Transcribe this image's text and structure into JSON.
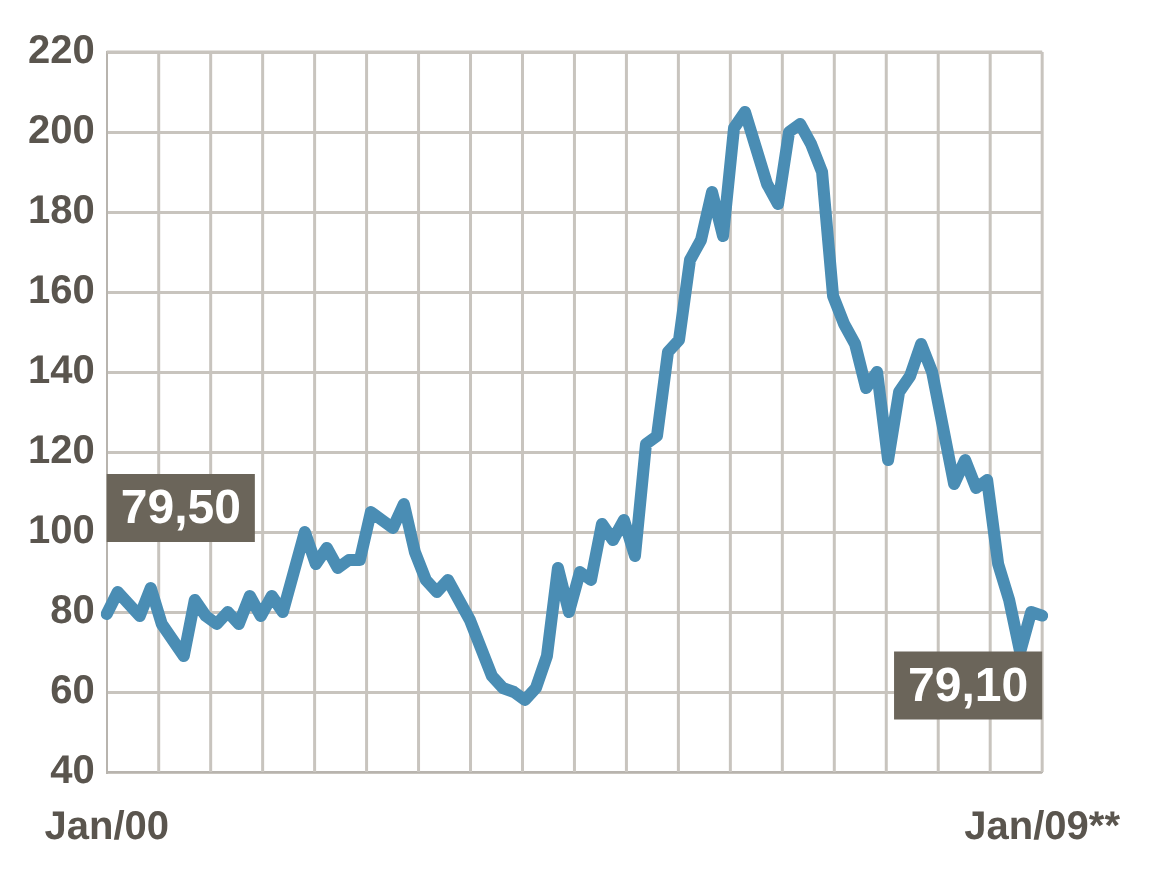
{
  "chart_data": {
    "type": "line",
    "categories": [
      "Jan/00",
      null,
      null,
      null,
      null,
      null,
      null,
      null,
      null,
      null,
      null,
      null,
      null,
      null,
      null,
      null,
      null,
      null,
      null,
      null,
      null,
      null,
      null,
      null,
      null,
      null,
      null,
      null,
      null,
      null,
      null,
      null,
      null,
      null,
      null,
      null,
      null,
      null,
      null,
      null,
      null,
      null,
      null,
      null,
      null,
      null,
      null,
      null,
      null,
      null,
      null,
      null,
      null,
      null,
      null,
      null,
      null,
      null,
      null,
      null,
      null,
      null,
      null,
      null,
      null,
      null,
      null,
      null,
      null,
      null,
      null,
      null,
      null,
      null,
      null,
      null,
      null,
      null,
      null,
      null,
      null,
      null,
      null,
      null,
      null,
      "Jan/09**"
    ],
    "series": [
      {
        "color": "#4a8db4",
        "values": [
          79.5,
          85,
          82,
          79,
          86,
          77,
          73,
          69,
          83,
          79,
          77,
          80,
          77,
          84,
          79,
          84,
          80,
          90,
          100,
          92,
          96,
          91,
          93,
          93,
          105,
          103,
          101,
          107,
          95,
          88,
          85,
          88,
          83,
          78,
          71,
          64,
          61,
          60,
          58,
          61,
          69,
          91,
          80,
          90,
          88,
          102,
          98,
          103,
          94,
          122,
          124,
          145,
          148,
          168,
          173,
          185,
          174,
          201,
          205,
          196,
          187,
          182,
          200,
          202,
          197,
          190,
          159,
          152,
          147,
          136,
          140,
          118,
          135,
          139,
          147,
          140,
          126,
          112,
          118,
          111,
          113,
          92,
          83,
          70,
          80,
          79.1
        ]
      }
    ],
    "ylim": [
      40,
      220
    ],
    "yticks": [
      40,
      60,
      80,
      100,
      120,
      140,
      160,
      180,
      200,
      220
    ],
    "annotations": [
      {
        "text": "79,50",
        "x": "Jan/00",
        "y": 79.5
      },
      {
        "text": "79,10",
        "x": "Jan/09**",
        "y": 79.1
      }
    ],
    "grid": true,
    "legend": false,
    "marker": "none",
    "line_style": "solid"
  }
}
